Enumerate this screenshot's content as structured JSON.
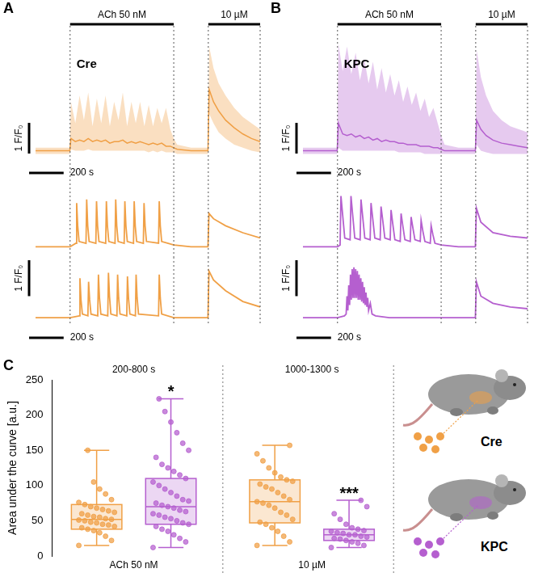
{
  "chart_data": [
    {
      "panel": "A",
      "type": "line",
      "title": "Cre",
      "color": "#f0a046",
      "xlim": [
        0,
        1300
      ],
      "tick_labels": false,
      "stimuli": [
        {
          "label": "ACh 50 nM",
          "start": 200,
          "end": 800
        },
        {
          "label": "10 µM",
          "start": 1000,
          "end": 1300
        }
      ],
      "scale_bar": {
        "x": 200,
        "x_label": "200 s",
        "y": 1,
        "y_label": "1 F/F₀"
      },
      "series": [
        {
          "ylim": [
            0.7,
            4.6
          ],
          "x": [
            0,
            100,
            198,
            205,
            230,
            255,
            280,
            305,
            330,
            355,
            380,
            405,
            430,
            455,
            480,
            505,
            530,
            555,
            580,
            605,
            630,
            655,
            680,
            705,
            730,
            755,
            780,
            800,
            820,
            900,
            998,
            1005,
            1030,
            1060,
            1100,
            1150,
            1200,
            1250,
            1300
          ],
          "values": [
            1.0,
            1.0,
            1.0,
            1.4,
            1.3,
            1.35,
            1.3,
            1.4,
            1.3,
            1.35,
            1.3,
            1.35,
            1.25,
            1.3,
            1.3,
            1.35,
            1.25,
            1.3,
            1.25,
            1.3,
            1.25,
            1.2,
            1.25,
            1.2,
            1.25,
            1.15,
            1.15,
            1.1,
            1.05,
            1.0,
            1.0,
            3.0,
            2.6,
            2.3,
            2.0,
            1.75,
            1.55,
            1.4,
            1.3
          ],
          "band_upper": [
            1.1,
            1.1,
            1.1,
            2.6,
            1.9,
            2.8,
            2.0,
            2.9,
            1.8,
            2.7,
            1.9,
            2.8,
            1.8,
            2.6,
            2.0,
            2.9,
            1.8,
            2.6,
            1.9,
            2.6,
            1.8,
            2.5,
            1.8,
            2.4,
            1.9,
            2.4,
            1.7,
            1.4,
            1.2,
            1.1,
            1.1,
            4.4,
            3.7,
            3.2,
            2.8,
            2.4,
            2.1,
            1.9,
            1.7
          ],
          "band_lower": [
            0.9,
            0.9,
            0.9,
            1.05,
            1.0,
            1.0,
            1.0,
            1.05,
            1.0,
            1.0,
            1.0,
            1.0,
            1.0,
            1.0,
            1.0,
            1.0,
            1.0,
            1.0,
            1.0,
            1.0,
            1.0,
            0.95,
            1.0,
            0.95,
            1.0,
            0.95,
            0.95,
            0.95,
            0.9,
            0.9,
            0.9,
            2.2,
            1.9,
            1.6,
            1.4,
            1.2,
            1.1,
            1.0,
            0.95
          ]
        },
        {
          "ylim": [
            0.8,
            2.6
          ],
          "x": [
            0,
            100,
            200,
            234,
            238,
            244,
            252,
            292,
            296,
            302,
            310,
            349,
            353,
            359,
            367,
            406,
            410,
            416,
            424,
            460,
            464,
            470,
            478,
            513,
            517,
            523,
            531,
            567,
            571,
            577,
            585,
            624,
            628,
            634,
            642,
            712,
            716,
            722,
            730,
            800,
            900,
            998,
            1004,
            1030,
            1100,
            1200,
            1300
          ],
          "values": [
            1.0,
            1.0,
            1.0,
            1.1,
            2.25,
            1.6,
            1.15,
            1.1,
            2.35,
            1.6,
            1.15,
            1.1,
            2.3,
            1.6,
            1.15,
            1.1,
            2.3,
            1.6,
            1.15,
            1.1,
            2.35,
            1.6,
            1.15,
            1.1,
            2.3,
            1.6,
            1.15,
            1.1,
            2.3,
            1.6,
            1.15,
            1.1,
            2.25,
            1.6,
            1.15,
            1.1,
            2.3,
            1.6,
            1.15,
            1.05,
            1.0,
            1.0,
            1.95,
            1.8,
            1.6,
            1.4,
            1.25
          ]
        },
        {
          "ylim": [
            0.8,
            2.6
          ],
          "x": [
            0,
            100,
            200,
            253,
            257,
            263,
            271,
            303,
            307,
            313,
            321,
            360,
            364,
            370,
            378,
            418,
            422,
            428,
            436,
            471,
            475,
            481,
            489,
            528,
            532,
            538,
            546,
            578,
            582,
            588,
            596,
            712,
            716,
            722,
            730,
            800,
            900,
            998,
            1004,
            1030,
            1100,
            1200,
            1300
          ],
          "values": [
            1.0,
            1.0,
            1.0,
            1.05,
            2.1,
            1.5,
            1.1,
            1.05,
            2.0,
            1.5,
            1.1,
            1.05,
            2.2,
            1.55,
            1.1,
            1.05,
            2.25,
            1.6,
            1.1,
            1.05,
            2.2,
            1.55,
            1.1,
            1.05,
            2.15,
            1.55,
            1.1,
            1.05,
            2.2,
            1.55,
            1.1,
            1.05,
            2.2,
            1.55,
            1.1,
            1.0,
            1.0,
            1.0,
            2.3,
            2.05,
            1.75,
            1.45,
            1.3
          ]
        }
      ]
    },
    {
      "panel": "B",
      "type": "line",
      "title": "KPC",
      "color": "#b55fcf",
      "xlim": [
        0,
        1300
      ],
      "tick_labels": false,
      "stimuli": [
        {
          "label": "ACh 50 nM",
          "start": 200,
          "end": 800
        },
        {
          "label": "10 µM",
          "start": 1000,
          "end": 1300
        }
      ],
      "scale_bar": {
        "x": 200,
        "x_label": "200 s",
        "y": 1,
        "y_label": "1 F/F₀"
      },
      "series": [
        {
          "ylim": [
            0.7,
            4.6
          ],
          "x": [
            0,
            100,
            198,
            205,
            230,
            255,
            280,
            305,
            330,
            355,
            380,
            405,
            430,
            455,
            480,
            505,
            530,
            555,
            580,
            605,
            630,
            655,
            680,
            705,
            730,
            755,
            780,
            800,
            820,
            900,
            998,
            1005,
            1030,
            1060,
            1100,
            1150,
            1200,
            1250,
            1300
          ],
          "values": [
            1.0,
            1.0,
            1.0,
            1.9,
            1.55,
            1.5,
            1.55,
            1.45,
            1.5,
            1.4,
            1.45,
            1.35,
            1.4,
            1.3,
            1.35,
            1.3,
            1.3,
            1.25,
            1.25,
            1.2,
            1.2,
            1.2,
            1.15,
            1.15,
            1.15,
            1.1,
            1.1,
            1.05,
            1.0,
            1.0,
            1.0,
            2.0,
            1.7,
            1.5,
            1.35,
            1.25,
            1.2,
            1.15,
            1.1
          ],
          "band_upper": [
            1.1,
            1.1,
            1.1,
            4.5,
            3.6,
            4.4,
            3.5,
            4.2,
            3.3,
            4.0,
            3.2,
            3.9,
            3.0,
            3.7,
            2.9,
            3.5,
            2.8,
            3.3,
            2.6,
            3.1,
            2.5,
            2.9,
            2.3,
            2.7,
            2.1,
            2.4,
            1.9,
            1.5,
            1.2,
            1.1,
            1.1,
            4.3,
            3.4,
            2.8,
            2.3,
            2.0,
            1.8,
            1.7,
            1.6
          ],
          "band_lower": [
            0.9,
            0.9,
            0.9,
            1.1,
            1.0,
            1.0,
            1.0,
            1.0,
            1.0,
            1.0,
            1.0,
            1.0,
            1.0,
            1.0,
            1.0,
            1.0,
            1.0,
            0.95,
            0.95,
            0.95,
            0.95,
            0.95,
            0.95,
            0.9,
            0.9,
            0.9,
            0.9,
            0.9,
            0.9,
            0.9,
            0.9,
            1.2,
            1.0,
            0.95,
            0.9,
            0.9,
            0.9,
            0.9,
            0.9
          ]
        },
        {
          "ylim": [
            0.8,
            2.6
          ],
          "x": [
            0,
            100,
            200,
            215,
            220,
            230,
            242,
            273,
            278,
            288,
            300,
            331,
            336,
            346,
            358,
            389,
            394,
            404,
            416,
            447,
            452,
            462,
            474,
            505,
            510,
            520,
            532,
            563,
            568,
            578,
            590,
            621,
            626,
            636,
            648,
            679,
            684,
            694,
            706,
            737,
            742,
            752,
            764,
            800,
            900,
            998,
            1004,
            1030,
            1100,
            1200,
            1300
          ],
          "values": [
            1.0,
            1.0,
            1.0,
            1.05,
            2.45,
            1.9,
            1.25,
            1.2,
            2.45,
            1.9,
            1.25,
            1.2,
            2.35,
            1.85,
            1.25,
            1.2,
            2.25,
            1.8,
            1.25,
            1.2,
            2.15,
            1.75,
            1.25,
            1.2,
            2.05,
            1.65,
            1.2,
            1.15,
            1.95,
            1.6,
            1.2,
            1.15,
            1.85,
            1.55,
            1.2,
            1.15,
            1.75,
            1.45,
            1.15,
            1.1,
            1.6,
            1.35,
            1.1,
            1.05,
            1.0,
            1.0,
            2.1,
            1.7,
            1.4,
            1.3,
            1.25
          ]
        },
        {
          "ylim": [
            0.8,
            2.6
          ],
          "x": [
            0,
            200,
            240,
            250,
            255,
            260,
            265,
            270,
            275,
            280,
            285,
            290,
            295,
            300,
            305,
            310,
            315,
            320,
            325,
            330,
            335,
            340,
            345,
            350,
            355,
            360,
            365,
            370,
            375,
            380,
            390,
            400,
            420,
            500,
            800,
            998,
            1004,
            1030,
            1100,
            1200,
            1300
          ],
          "values": [
            1.0,
            1.0,
            1.05,
            1.1,
            1.6,
            1.2,
            1.9,
            1.35,
            2.2,
            1.5,
            2.35,
            1.55,
            2.4,
            1.55,
            2.35,
            1.55,
            2.3,
            1.5,
            2.2,
            1.5,
            2.1,
            1.45,
            2.0,
            1.4,
            1.85,
            1.35,
            1.7,
            1.3,
            1.55,
            1.2,
            1.4,
            1.1,
            1.05,
            1.0,
            1.0,
            1.0,
            2.0,
            1.6,
            1.4,
            1.3,
            1.25
          ]
        }
      ]
    },
    {
      "panel": "C",
      "type": "box",
      "y_label": "Area under the curve [a.u.]",
      "ylim": [
        0,
        250
      ],
      "yticks": [
        0,
        50,
        100,
        150,
        200,
        250
      ],
      "series": [
        {
          "name": "Cre",
          "color": "#f0a046"
        },
        {
          "name": "KPC",
          "color": "#b55fcf"
        }
      ],
      "groups": [
        {
          "label": "ACh 50 nM",
          "window": "200-800 s",
          "boxes": [
            {
              "min": 15,
              "q1": 38,
              "median": 52,
              "q3": 73,
              "max": 150,
              "points": [
                15,
                22,
                28,
                33,
                36,
                38,
                40,
                42,
                44,
                45,
                47,
                48,
                50,
                51,
                52,
                53,
                55,
                56,
                58,
                60,
                62,
                64,
                66,
                68,
                70,
                73,
                76,
                80,
                88,
                95,
                105,
                150
              ]
            },
            {
              "min": 12,
              "q1": 45,
              "median": 70,
              "q3": 110,
              "max": 223,
              "annotation": "*",
              "points": [
                12,
                20,
                25,
                30,
                35,
                38,
                42,
                45,
                47,
                50,
                53,
                55,
                58,
                60,
                63,
                65,
                68,
                70,
                72,
                75,
                78,
                80,
                85,
                90,
                95,
                100,
                105,
                110,
                115,
                120,
                125,
                130,
                140,
                150,
                160,
                175,
                190,
                205,
                223
              ]
            }
          ]
        },
        {
          "label": "10 µM",
          "window": "1000-1300 s",
          "boxes": [
            {
              "min": 15,
              "q1": 47,
              "median": 77,
              "q3": 108,
              "max": 157,
              "points": [
                15,
                20,
                28,
                35,
                40,
                45,
                48,
                52,
                58,
                62,
                68,
                72,
                75,
                77,
                80,
                85,
                90,
                95,
                98,
                102,
                106,
                108,
                112,
                118,
                125,
                135,
                145,
                157
              ]
            },
            {
              "min": 12,
              "q1": 22,
              "median": 30,
              "q3": 38,
              "max": 79,
              "annotation": "***",
              "points": [
                12,
                15,
                18,
                20,
                22,
                24,
                25,
                27,
                28,
                30,
                30,
                32,
                33,
                35,
                36,
                38,
                40,
                45,
                52,
                60,
                70,
                79
              ]
            }
          ]
        }
      ]
    }
  ]
}
